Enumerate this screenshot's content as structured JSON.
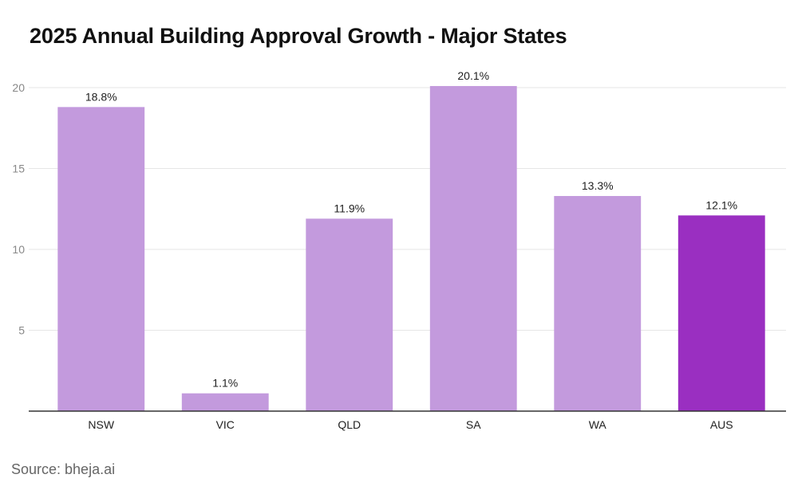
{
  "chart_data": {
    "type": "bar",
    "title": "2025 Annual Building Approval Growth - Major States",
    "categories": [
      "NSW",
      "VIC",
      "QLD",
      "SA",
      "WA",
      "AUS"
    ],
    "values": [
      18.8,
      1.1,
      11.9,
      20.1,
      13.3,
      12.1
    ],
    "data_labels": [
      "18.8%",
      "1.1%",
      "11.9%",
      "20.1%",
      "13.3%",
      "12.1%"
    ],
    "y_ticks": [
      5,
      10,
      15,
      20
    ],
    "ylim": [
      0,
      20
    ],
    "xlabel": "",
    "ylabel": "",
    "grid": true,
    "legend": "none",
    "colors": {
      "default_bar": "#c39add",
      "highlight_bar": "#9a2fc1",
      "highlight_category": "AUS"
    }
  },
  "source": "Source: bheja.ai"
}
